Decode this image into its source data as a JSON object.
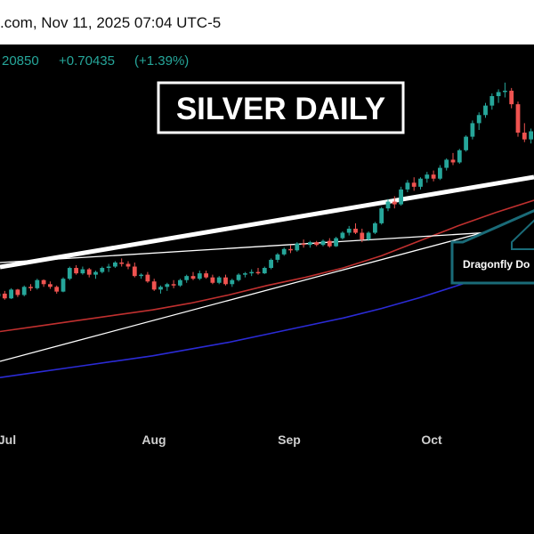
{
  "header": {
    "source_line": ".com,  Nov 11, 2025 07:04 UTC-5"
  },
  "colors": {
    "background": "#000000",
    "up_candle": "#26a69a",
    "down_candle": "#ef5350",
    "ma_red": "#c0302f",
    "ma_blue": "#2b2bd6",
    "trendline": "#ffffff",
    "callout": "#1a6b78"
  },
  "chart_data": {
    "type": "candlestick",
    "title": "SILVER DAILY",
    "price_change": {
      "last_fragment": "20850",
      "change": "+0.70435",
      "change_pct": "(+1.39%)"
    },
    "annotation": "Dragonfly Do",
    "x_labels": [
      "Jul",
      "Aug",
      "Sep",
      "Oct"
    ],
    "grid": false,
    "ohlc": [
      [
        36.2,
        36.5,
        36.0,
        36.4
      ],
      [
        36.4,
        36.6,
        35.95,
        36.05
      ],
      [
        36.05,
        36.8,
        36.0,
        36.7
      ],
      [
        36.7,
        36.75,
        36.15,
        36.3
      ],
      [
        36.3,
        37.0,
        36.2,
        36.9
      ],
      [
        36.9,
        37.1,
        36.6,
        36.8
      ],
      [
        36.8,
        37.5,
        36.7,
        37.4
      ],
      [
        37.4,
        37.45,
        36.9,
        37.1
      ],
      [
        37.1,
        37.3,
        36.75,
        36.9
      ],
      [
        36.9,
        37.0,
        36.4,
        36.55
      ],
      [
        36.55,
        37.6,
        36.5,
        37.5
      ],
      [
        37.5,
        38.4,
        37.4,
        38.3
      ],
      [
        38.3,
        38.5,
        37.8,
        37.9
      ],
      [
        37.9,
        38.4,
        37.8,
        38.2
      ],
      [
        38.2,
        38.3,
        37.6,
        37.8
      ],
      [
        37.8,
        38.1,
        37.5,
        38.0
      ],
      [
        38.0,
        38.4,
        37.9,
        38.3
      ],
      [
        38.3,
        38.6,
        38.0,
        38.4
      ],
      [
        38.4,
        38.8,
        38.3,
        38.7
      ],
      [
        38.7,
        39.0,
        38.4,
        38.6
      ],
      [
        38.6,
        38.8,
        38.2,
        38.4
      ],
      [
        38.4,
        38.7,
        37.6,
        37.7
      ],
      [
        37.7,
        37.9,
        37.5,
        37.8
      ],
      [
        37.8,
        38.0,
        37.2,
        37.3
      ],
      [
        37.3,
        37.5,
        36.6,
        36.7
      ],
      [
        36.7,
        37.0,
        36.4,
        36.9
      ],
      [
        36.9,
        37.2,
        36.6,
        37.1
      ],
      [
        37.1,
        37.4,
        36.8,
        37.0
      ],
      [
        37.0,
        37.5,
        36.9,
        37.4
      ],
      [
        37.4,
        37.8,
        37.2,
        37.7
      ],
      [
        37.7,
        38.0,
        37.4,
        37.5
      ],
      [
        37.5,
        38.1,
        37.4,
        37.9
      ],
      [
        37.9,
        38.1,
        37.5,
        37.6
      ],
      [
        37.6,
        37.8,
        37.1,
        37.2
      ],
      [
        37.2,
        37.7,
        37.1,
        37.6
      ],
      [
        37.6,
        37.8,
        37.0,
        37.1
      ],
      [
        37.1,
        37.5,
        36.9,
        37.4
      ],
      [
        37.4,
        37.9,
        37.3,
        37.8
      ],
      [
        37.8,
        38.0,
        37.6,
        37.9
      ],
      [
        37.9,
        38.2,
        37.7,
        38.0
      ],
      [
        38.0,
        38.3,
        37.8,
        37.9
      ],
      [
        37.9,
        38.4,
        37.85,
        38.3
      ],
      [
        38.3,
        39.0,
        38.2,
        38.9
      ],
      [
        38.9,
        39.4,
        38.7,
        39.3
      ],
      [
        39.3,
        39.8,
        39.2,
        39.7
      ],
      [
        39.7,
        40.0,
        39.4,
        39.6
      ],
      [
        39.6,
        40.2,
        39.5,
        40.1
      ],
      [
        40.1,
        40.4,
        39.8,
        40.0
      ],
      [
        40.0,
        40.3,
        39.8,
        40.2
      ],
      [
        40.2,
        40.3,
        39.9,
        40.0
      ],
      [
        40.0,
        40.4,
        39.9,
        40.3
      ],
      [
        40.3,
        40.5,
        39.8,
        39.9
      ],
      [
        39.9,
        40.6,
        39.85,
        40.5
      ],
      [
        40.5,
        41.0,
        40.4,
        40.9
      ],
      [
        40.9,
        41.4,
        40.7,
        41.2
      ],
      [
        41.2,
        41.6,
        40.8,
        40.9
      ],
      [
        40.9,
        41.2,
        40.2,
        40.4
      ],
      [
        40.4,
        41.0,
        40.3,
        40.9
      ],
      [
        40.9,
        41.7,
        40.8,
        41.6
      ],
      [
        41.6,
        42.8,
        41.5,
        42.7
      ],
      [
        42.7,
        43.4,
        42.5,
        43.2
      ],
      [
        43.2,
        43.6,
        42.7,
        43.0
      ],
      [
        43.0,
        44.3,
        42.9,
        44.1
      ],
      [
        44.1,
        44.8,
        43.9,
        44.6
      ],
      [
        44.6,
        45.0,
        44.0,
        44.3
      ],
      [
        44.3,
        45.0,
        44.1,
        44.9
      ],
      [
        44.9,
        45.4,
        44.6,
        45.2
      ],
      [
        45.2,
        45.5,
        44.7,
        44.9
      ],
      [
        44.9,
        45.9,
        44.8,
        45.7
      ],
      [
        45.7,
        46.4,
        45.5,
        46.3
      ],
      [
        46.3,
        46.8,
        45.9,
        46.1
      ],
      [
        46.1,
        47.1,
        46.0,
        47.0
      ],
      [
        47.0,
        48.1,
        46.9,
        48.0
      ],
      [
        48.0,
        49.2,
        47.8,
        49.0
      ],
      [
        49.0,
        49.8,
        48.5,
        49.6
      ],
      [
        49.6,
        50.5,
        49.4,
        50.3
      ],
      [
        50.3,
        51.2,
        50.0,
        51.0
      ],
      [
        51.0,
        51.5,
        50.5,
        51.3
      ],
      [
        51.3,
        52.0,
        50.9,
        51.4
      ],
      [
        51.4,
        51.6,
        50.1,
        50.4
      ],
      [
        50.4,
        50.6,
        48.0,
        48.3
      ],
      [
        48.3,
        49.0,
        47.6,
        47.8
      ],
      [
        47.8,
        48.6,
        47.5,
        48.4
      ],
      [
        48.4,
        48.9,
        47.9,
        48.0
      ]
    ],
    "moving_averages": [
      {
        "color": "#c0302f",
        "values": [
          33.6,
          34.0,
          34.4,
          34.8,
          35.2,
          35.7,
          36.3,
          37.0,
          37.6,
          38.3,
          39.2,
          40.3,
          41.4,
          42.4,
          43.3
        ]
      },
      {
        "color": "#2b2bd6",
        "values": [
          30.2,
          30.6,
          31.0,
          31.4,
          31.8,
          32.3,
          32.8,
          33.4,
          34.0,
          34.6,
          35.3,
          36.1,
          37.0,
          37.9,
          38.9
        ]
      }
    ]
  }
}
